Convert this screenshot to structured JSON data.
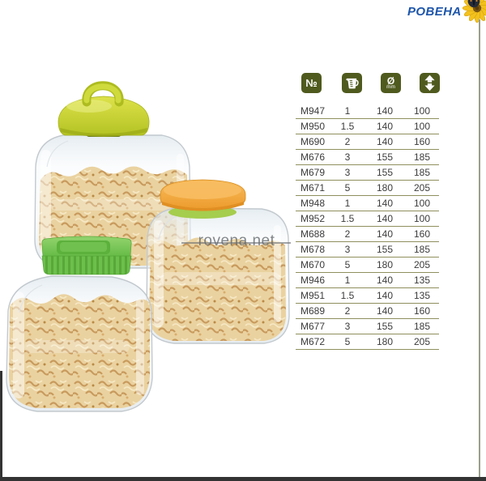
{
  "brand": {
    "name": "РОВЕНА",
    "color": "#1d55aa",
    "icon": "sunflower-with-butterfly"
  },
  "watermark": {
    "text": "rovena.net"
  },
  "spec_table": {
    "icon_bg_color": "#4f5a1e",
    "row_line_color": "#8f8f5e",
    "header_icons": [
      {
        "name": "number-icon",
        "symbol": "№",
        "meaning": "model number"
      },
      {
        "name": "volume-icon",
        "symbol": "measuring-jug",
        "meaning": "volume, liters"
      },
      {
        "name": "diameter-icon",
        "symbol": "Ø",
        "unit": "mm",
        "meaning": "diameter, mm"
      },
      {
        "name": "height-icon",
        "symbol": "up-down-arrows",
        "meaning": "height, mm"
      }
    ],
    "rows": [
      {
        "model": "M947",
        "volume": "1",
        "diameter": "140",
        "height": "100"
      },
      {
        "model": "M950",
        "volume": "1.5",
        "diameter": "140",
        "height": "100"
      },
      {
        "model": "M690",
        "volume": "2",
        "diameter": "140",
        "height": "160"
      },
      {
        "model": "M676",
        "volume": "3",
        "diameter": "155",
        "height": "185"
      },
      {
        "model": "M679",
        "volume": "3",
        "diameter": "155",
        "height": "185"
      },
      {
        "model": "M671",
        "volume": "5",
        "diameter": "180",
        "height": "205"
      },
      {
        "model": "M948",
        "volume": "1",
        "diameter": "140",
        "height": "100"
      },
      {
        "model": "M952",
        "volume": "1.5",
        "diameter": "140",
        "height": "100"
      },
      {
        "model": "M688",
        "volume": "2",
        "diameter": "140",
        "height": "160"
      },
      {
        "model": "M678",
        "volume": "3",
        "diameter": "155",
        "height": "185"
      },
      {
        "model": "M670",
        "volume": "5",
        "diameter": "180",
        "height": "205"
      },
      {
        "model": "M946",
        "volume": "1",
        "diameter": "140",
        "height": "135"
      },
      {
        "model": "M951",
        "volume": "1.5",
        "diameter": "140",
        "height": "135"
      },
      {
        "model": "M689",
        "volume": "2",
        "diameter": "140",
        "height": "160"
      },
      {
        "model": "M677",
        "volume": "3",
        "diameter": "155",
        "height": "185"
      },
      {
        "model": "M672",
        "volume": "5",
        "diameter": "180",
        "height": "205"
      }
    ]
  },
  "photo": {
    "description": "three transparent plastic jars filled with fusilli pasta",
    "jars": [
      {
        "name": "jar-lime-handle-lid",
        "lid_color": "#c7d334"
      },
      {
        "name": "jar-orange-flat-lid",
        "lid_color": "#f2a83e",
        "band_color": "#a5cd4e"
      },
      {
        "name": "jar-green-ribbed-lid",
        "lid_color": "#7cc455"
      }
    ],
    "pasta_color": "#e8c98e"
  }
}
